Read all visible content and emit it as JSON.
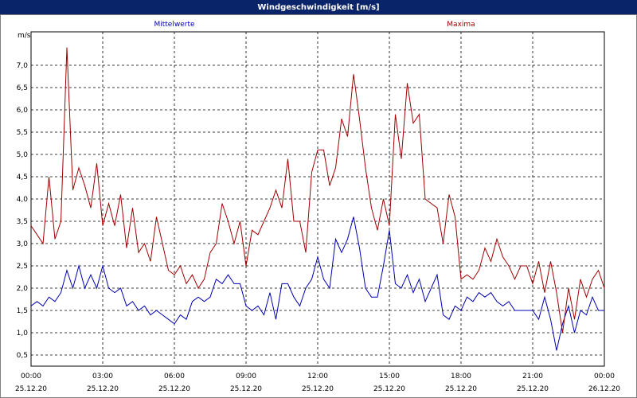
{
  "chart_data": {
    "type": "line",
    "title": "Windgeschwindigkeit [m/s]",
    "ylabel": "m/s",
    "xlim": [
      0,
      24
    ],
    "ylim": [
      0.25,
      7.75
    ],
    "xticks": [
      {
        "value": 0,
        "label": "00:00"
      },
      {
        "value": 3,
        "label": "03:00"
      },
      {
        "value": 6,
        "label": "06:00"
      },
      {
        "value": 9,
        "label": "09:00"
      },
      {
        "value": 12,
        "label": "12:00"
      },
      {
        "value": 15,
        "label": "15:00"
      },
      {
        "value": 18,
        "label": "18:00"
      },
      {
        "value": 21,
        "label": "21:00"
      },
      {
        "value": 24,
        "label": "00:00"
      }
    ],
    "xtick_dates": [
      "25.12.20",
      "25.12.20",
      "25.12.20",
      "25.12.20",
      "25.12.20",
      "25.12.20",
      "25.12.20",
      "25.12.20",
      "26.12.20"
    ],
    "yticks": [
      {
        "value": 0.5,
        "label": "0,5"
      },
      {
        "value": 1.0,
        "label": "1,0"
      },
      {
        "value": 1.5,
        "label": "1,5"
      },
      {
        "value": 2.0,
        "label": "2,0"
      },
      {
        "value": 2.5,
        "label": "2,5"
      },
      {
        "value": 3.0,
        "label": "3,0"
      },
      {
        "value": 3.5,
        "label": "3,5"
      },
      {
        "value": 4.0,
        "label": "4,0"
      },
      {
        "value": 4.5,
        "label": "4,5"
      },
      {
        "value": 5.0,
        "label": "5,0"
      },
      {
        "value": 5.5,
        "label": "5,5"
      },
      {
        "value": 6.0,
        "label": "6,0"
      },
      {
        "value": 6.5,
        "label": "6,5"
      },
      {
        "value": 7.0,
        "label": "7,0"
      }
    ],
    "grid": true,
    "x": [
      0,
      0.25,
      0.5,
      0.75,
      1,
      1.25,
      1.5,
      1.75,
      2,
      2.25,
      2.5,
      2.75,
      3,
      3.25,
      3.5,
      3.75,
      4,
      4.25,
      4.5,
      4.75,
      5,
      5.25,
      5.5,
      5.75,
      6,
      6.25,
      6.5,
      6.75,
      7,
      7.25,
      7.5,
      7.75,
      8,
      8.25,
      8.5,
      8.75,
      9,
      9.25,
      9.5,
      9.75,
      10,
      10.25,
      10.5,
      10.75,
      11,
      11.25,
      11.5,
      11.75,
      12,
      12.25,
      12.5,
      12.75,
      13,
      13.25,
      13.5,
      13.75,
      14,
      14.25,
      14.5,
      14.75,
      15,
      15.25,
      15.5,
      15.75,
      16,
      16.25,
      16.5,
      16.75,
      17,
      17.25,
      17.5,
      17.75,
      18,
      18.25,
      18.5,
      18.75,
      19,
      19.25,
      19.5,
      19.75,
      20,
      20.25,
      20.5,
      20.75,
      21,
      21.25,
      21.5,
      21.75,
      22,
      22.25,
      22.5,
      22.75,
      23,
      23.25,
      23.5,
      23.75,
      24
    ],
    "series": [
      {
        "name": "Mittelwerte",
        "color": "#0000b0",
        "values": [
          1.6,
          1.7,
          1.6,
          1.8,
          1.7,
          1.9,
          2.4,
          2.0,
          2.5,
          2.0,
          2.3,
          2.0,
          2.5,
          2.0,
          1.9,
          2.0,
          1.6,
          1.7,
          1.5,
          1.6,
          1.4,
          1.5,
          1.4,
          1.3,
          1.2,
          1.4,
          1.3,
          1.7,
          1.8,
          1.7,
          1.8,
          2.2,
          2.1,
          2.3,
          2.1,
          2.1,
          1.6,
          1.5,
          1.6,
          1.4,
          1.9,
          1.3,
          2.1,
          2.1,
          1.8,
          1.6,
          2.0,
          2.2,
          2.7,
          2.2,
          2.0,
          3.1,
          2.8,
          3.1,
          3.6,
          2.9,
          2.0,
          1.8,
          1.8,
          2.5,
          3.3,
          2.1,
          2.0,
          2.3,
          1.9,
          2.2,
          1.7,
          2.0,
          2.3,
          1.4,
          1.3,
          1.6,
          1.5,
          1.8,
          1.7,
          1.9,
          1.8,
          1.9,
          1.7,
          1.6,
          1.7,
          1.5,
          1.5,
          1.5,
          1.5,
          1.3,
          1.8,
          1.3,
          0.6,
          1.2,
          1.6,
          1.0,
          1.5,
          1.4,
          1.8,
          1.5,
          1.5
        ]
      },
      {
        "name": "Maxima",
        "color": "#a00000",
        "values": [
          3.4,
          3.2,
          3.0,
          4.5,
          3.1,
          3.5,
          7.4,
          4.2,
          4.7,
          4.3,
          3.8,
          4.8,
          3.4,
          3.9,
          3.4,
          4.1,
          2.9,
          3.8,
          2.8,
          3.0,
          2.6,
          3.6,
          3.0,
          2.4,
          2.3,
          2.5,
          2.1,
          2.3,
          2.0,
          2.2,
          2.8,
          3.0,
          3.9,
          3.5,
          3.0,
          3.5,
          2.5,
          3.3,
          3.2,
          3.5,
          3.8,
          4.2,
          3.8,
          4.9,
          3.5,
          3.5,
          2.8,
          4.6,
          5.1,
          5.1,
          4.3,
          4.7,
          5.8,
          5.4,
          6.8,
          5.8,
          4.7,
          3.8,
          3.3,
          4.0,
          3.4,
          5.9,
          4.9,
          6.6,
          5.7,
          5.9,
          4.0,
          3.9,
          3.8,
          3.0,
          4.1,
          3.6,
          2.2,
          2.3,
          2.2,
          2.4,
          2.9,
          2.6,
          3.1,
          2.7,
          2.5,
          2.2,
          2.5,
          2.5,
          2.1,
          2.6,
          1.9,
          2.6,
          1.9,
          1.0,
          2.0,
          1.3,
          2.2,
          1.8,
          2.2,
          2.4,
          2.0
        ]
      }
    ]
  }
}
